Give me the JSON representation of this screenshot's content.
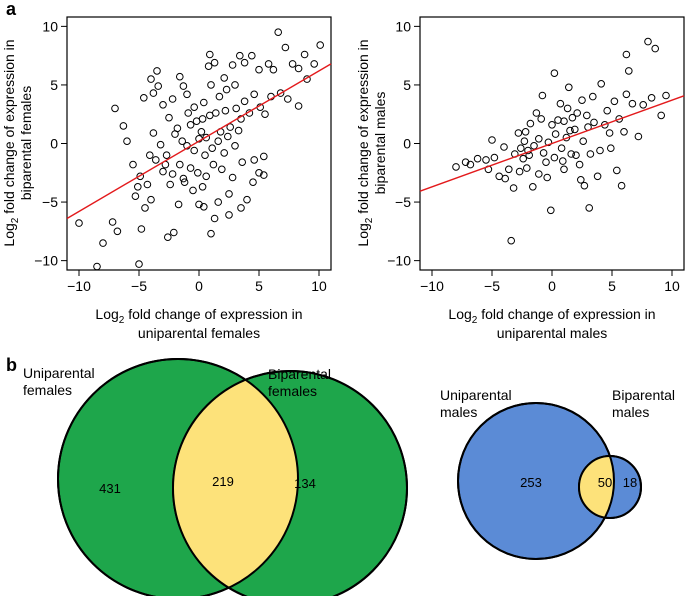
{
  "figure": {
    "panel_a_label": "a",
    "panel_b_label": "b"
  },
  "chart_data": [
    {
      "type": "scatter",
      "name": "females-scatter",
      "xlabel_main": "Log",
      "xlabel_sub": "2",
      "xlabel_rest": " fold change of expression in",
      "xlabel_line2": "uniparental females",
      "ylabel_main": "Log",
      "ylabel_sub": "2",
      "ylabel_rest": " fold change of expression in",
      "ylabel_line2": "biparental females",
      "xlim": [
        -11,
        11
      ],
      "ylim": [
        -10.8,
        10.8
      ],
      "xticks": [
        -10,
        -5,
        0,
        5,
        10
      ],
      "yticks": [
        -10,
        -5,
        0,
        5,
        10
      ],
      "regression": {
        "slope": 0.6,
        "intercept": 0.2,
        "color": "#e31a1c"
      },
      "marker_color": "#000000",
      "points": [
        [
          -10.0,
          -6.8
        ],
        [
          -8.5,
          -10.5
        ],
        [
          -8.0,
          -8.5
        ],
        [
          -7.2,
          -6.7
        ],
        [
          -6.8,
          -7.5
        ],
        [
          -7.0,
          3.0
        ],
        [
          -6.0,
          0.2
        ],
        [
          -6.3,
          1.5
        ],
        [
          -5.3,
          -4.5
        ],
        [
          -5.0,
          -10.3
        ],
        [
          -5.1,
          -3.7
        ],
        [
          -4.5,
          -5.5
        ],
        [
          -4.8,
          -7.3
        ],
        [
          -4.0,
          -4.8
        ],
        [
          -4.3,
          -3.5
        ],
        [
          -3.8,
          4.3
        ],
        [
          -4.0,
          5.5
        ],
        [
          -3.5,
          6.2
        ],
        [
          -4.6,
          3.9
        ],
        [
          -3.4,
          4.9
        ],
        [
          -3.0,
          3.3
        ],
        [
          -2.6,
          -8.0
        ],
        [
          -2.1,
          -7.6
        ],
        [
          -1.7,
          -5.2
        ],
        [
          -1.2,
          -3.3
        ],
        [
          -0.5,
          -4.0
        ],
        [
          0.0,
          -5.2
        ],
        [
          0.4,
          -5.4
        ],
        [
          1.0,
          -7.7
        ],
        [
          1.3,
          -6.4
        ],
        [
          1.6,
          -5.0
        ],
        [
          2.5,
          -6.1
        ],
        [
          3.5,
          -5.5
        ],
        [
          4.0,
          -4.8
        ],
        [
          4.5,
          -3.3
        ],
        [
          5.0,
          -2.5
        ],
        [
          5.4,
          -2.7
        ],
        [
          2.5,
          -4.3
        ],
        [
          4.6,
          -1.4
        ],
        [
          5.4,
          -1.1
        ],
        [
          2.1,
          5.6
        ],
        [
          2.8,
          6.7
        ],
        [
          3.4,
          7.5
        ],
        [
          3.8,
          6.9
        ],
        [
          4.4,
          7.5
        ],
        [
          5.0,
          6.3
        ],
        [
          5.8,
          6.8
        ],
        [
          6.2,
          6.3
        ],
        [
          6.6,
          9.5
        ],
        [
          7.2,
          8.2
        ],
        [
          7.8,
          6.8
        ],
        [
          8.3,
          6.4
        ],
        [
          8.8,
          7.6
        ],
        [
          9.6,
          6.8
        ],
        [
          10.1,
          8.4
        ],
        [
          6.0,
          4.0
        ],
        [
          6.8,
          4.3
        ],
        [
          7.4,
          3.8
        ],
        [
          8.3,
          3.2
        ],
        [
          9.0,
          5.5
        ],
        [
          0.9,
          7.6
        ],
        [
          1.3,
          6.9
        ],
        [
          0.8,
          6.6
        ],
        [
          -1.6,
          5.7
        ],
        [
          -1.0,
          4.2
        ],
        [
          -2.5,
          2.2
        ],
        [
          -2.2,
          3.8
        ],
        [
          -2.0,
          0.8
        ],
        [
          -3.0,
          -2.4
        ],
        [
          -3.6,
          -1.4
        ],
        [
          -2.7,
          -1.0
        ],
        [
          -1.6,
          -1.8
        ],
        [
          -2.2,
          -2.6
        ],
        [
          -1.8,
          1.3
        ],
        [
          -0.7,
          1.6
        ],
        [
          -0.2,
          1.9
        ],
        [
          0.3,
          2.1
        ],
        [
          0.6,
          0.5
        ],
        [
          0.9,
          2.4
        ],
        [
          1.4,
          2.6
        ],
        [
          1.8,
          1.0
        ],
        [
          2.2,
          2.8
        ],
        [
          2.6,
          1.4
        ],
        [
          3.1,
          3.0
        ],
        [
          3.5,
          2.1
        ],
        [
          3.8,
          3.6
        ],
        [
          4.2,
          2.6
        ],
        [
          4.6,
          4.2
        ],
        [
          5.1,
          3.1
        ],
        [
          5.5,
          2.5
        ],
        [
          1.1,
          -0.4
        ],
        [
          0.5,
          -1.0
        ],
        [
          -0.4,
          -0.6
        ],
        [
          -1.0,
          -0.2
        ],
        [
          -1.4,
          0.2
        ],
        [
          0.0,
          0.4
        ],
        [
          0.2,
          1.0
        ],
        [
          1.6,
          0.2
        ],
        [
          2.1,
          -0.8
        ],
        [
          2.4,
          0.6
        ],
        [
          3.0,
          -0.2
        ],
        [
          3.3,
          1.1
        ],
        [
          -0.7,
          -2.1
        ],
        [
          -0.1,
          -2.5
        ],
        [
          0.6,
          -2.8
        ],
        [
          1.2,
          -1.8
        ],
        [
          1.9,
          -2.2
        ],
        [
          -2.4,
          -3.5
        ],
        [
          -3.2,
          -0.1
        ],
        [
          -4.1,
          -1.0
        ],
        [
          -3.8,
          0.9
        ],
        [
          -0.4,
          3.1
        ],
        [
          0.4,
          3.5
        ],
        [
          1.7,
          4.0
        ],
        [
          2.3,
          4.6
        ],
        [
          3.0,
          5.0
        ],
        [
          -0.9,
          2.6
        ],
        [
          1.0,
          5.0
        ],
        [
          -1.3,
          4.9
        ],
        [
          -2.8,
          -1.8
        ],
        [
          -1.3,
          -3.0
        ],
        [
          0.3,
          -3.7
        ],
        [
          2.8,
          -2.9
        ],
        [
          3.6,
          -1.6
        ],
        [
          -5.5,
          -1.8
        ],
        [
          -4.9,
          -2.8
        ]
      ]
    },
    {
      "type": "scatter",
      "name": "males-scatter",
      "xlabel_main": "Log",
      "xlabel_sub": "2",
      "xlabel_rest": " fold change of expression in",
      "xlabel_line2": "uniparental males",
      "ylabel_main": "Log",
      "ylabel_sub": "2",
      "ylabel_rest": " fold change of expression in",
      "ylabel_line2": "biparental males",
      "xlim": [
        -11,
        11
      ],
      "ylim": [
        -10.8,
        10.8
      ],
      "xticks": [
        -10,
        -5,
        0,
        5,
        10
      ],
      "yticks": [
        -10,
        -5,
        0,
        5,
        10
      ],
      "regression": {
        "slope": 0.37,
        "intercept": 0.0,
        "color": "#e31a1c"
      },
      "marker_color": "#000000",
      "points": [
        [
          -8.0,
          -2.0
        ],
        [
          -7.2,
          -1.6
        ],
        [
          -6.8,
          -1.8
        ],
        [
          -6.2,
          -1.3
        ],
        [
          -5.5,
          -1.4
        ],
        [
          -5.3,
          -2.2
        ],
        [
          -5.0,
          0.3
        ],
        [
          -4.8,
          -1.2
        ],
        [
          -4.4,
          -2.8
        ],
        [
          -3.9,
          -3.0
        ],
        [
          -3.6,
          -2.2
        ],
        [
          -3.4,
          -8.3
        ],
        [
          -3.2,
          -3.8
        ],
        [
          -2.8,
          0.9
        ],
        [
          -2.7,
          -2.4
        ],
        [
          -2.4,
          -1.3
        ],
        [
          -2.2,
          1.0
        ],
        [
          -2.0,
          -0.6
        ],
        [
          -1.6,
          -3.7
        ],
        [
          -1.3,
          2.6
        ],
        [
          -0.8,
          4.1
        ],
        [
          -0.4,
          -2.9
        ],
        [
          -0.1,
          -5.7
        ],
        [
          0.2,
          6.0
        ],
        [
          0.7,
          3.4
        ],
        [
          1.0,
          -2.2
        ],
        [
          1.4,
          4.8
        ],
        [
          1.7,
          2.2
        ],
        [
          2.0,
          -1.0
        ],
        [
          2.4,
          -3.1
        ],
        [
          2.7,
          -3.6
        ],
        [
          3.1,
          -5.5
        ],
        [
          3.4,
          4.0
        ],
        [
          3.8,
          -2.8
        ],
        [
          4.1,
          5.1
        ],
        [
          4.4,
          1.6
        ],
        [
          4.8,
          0.9
        ],
        [
          5.2,
          3.6
        ],
        [
          5.4,
          -2.3
        ],
        [
          5.8,
          -3.6
        ],
        [
          6.2,
          4.2
        ],
        [
          6.4,
          6.2
        ],
        [
          6.7,
          3.4
        ],
        [
          7.2,
          0.6
        ],
        [
          7.6,
          3.3
        ],
        [
          8.0,
          8.7
        ],
        [
          8.6,
          8.1
        ],
        [
          8.3,
          3.9
        ],
        [
          9.1,
          2.4
        ],
        [
          9.5,
          4.1
        ],
        [
          6.2,
          7.6
        ],
        [
          4.0,
          -0.6
        ],
        [
          3.0,
          1.4
        ],
        [
          2.6,
          0.2
        ],
        [
          1.9,
          1.2
        ],
        [
          1.2,
          0.5
        ],
        [
          0.8,
          -0.4
        ],
        [
          0.3,
          0.8
        ],
        [
          -0.3,
          0.1
        ],
        [
          -0.7,
          -0.8
        ],
        [
          -1.1,
          0.4
        ],
        [
          -1.5,
          -0.2
        ],
        [
          -1.9,
          -1.0
        ],
        [
          -2.3,
          0.2
        ],
        [
          -2.6,
          -0.4
        ],
        [
          0.0,
          1.6
        ],
        [
          0.5,
          2.0
        ],
        [
          1.0,
          1.9
        ],
        [
          1.5,
          1.1
        ],
        [
          2.1,
          2.6
        ],
        [
          2.9,
          2.4
        ],
        [
          3.5,
          1.8
        ],
        [
          4.6,
          2.8
        ],
        [
          5.6,
          2.1
        ],
        [
          -0.5,
          -1.6
        ],
        [
          0.2,
          -1.2
        ],
        [
          0.9,
          -1.5
        ],
        [
          1.6,
          -0.9
        ],
        [
          2.3,
          -1.8
        ],
        [
          3.2,
          -0.9
        ],
        [
          -1.8,
          1.7
        ],
        [
          -3.1,
          -0.9
        ],
        [
          -4.0,
          -0.3
        ],
        [
          -0.9,
          2.1
        ],
        [
          4.9,
          -0.4
        ],
        [
          6.0,
          1.0
        ],
        [
          1.3,
          3.0
        ],
        [
          2.5,
          3.7
        ],
        [
          -2.1,
          -2.1
        ],
        [
          -1.1,
          -2.6
        ]
      ]
    },
    {
      "type": "venn",
      "name": "females-venn",
      "left_label_line1": "Uniparental",
      "left_label_line2": "females",
      "right_label_line1": "Biparental",
      "right_label_line2": "females",
      "left_only": "431",
      "overlap": "219",
      "right_only": "134",
      "left_color": "#1ea64b",
      "right_color": "#1ea64b",
      "overlap_color": "#fde27a"
    },
    {
      "type": "venn",
      "name": "males-venn",
      "left_label_line1": "Uniparental",
      "left_label_line2": "males",
      "right_label_line1": "Biparental",
      "right_label_line2": "males",
      "left_only": "253",
      "overlap": "50",
      "right_only": "18",
      "left_color": "#5b8bd6",
      "right_color": "#5b8bd6",
      "overlap_color": "#fde27a"
    }
  ]
}
